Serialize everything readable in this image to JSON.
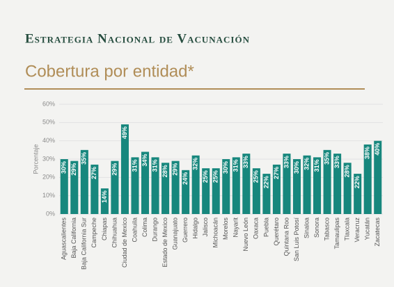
{
  "chart_data": {
    "type": "bar",
    "title": "Estrategia Nacional de Vacunación",
    "subtitle": "Cobertura por entidad*",
    "ylabel": "Porcentaje",
    "categories": [
      "Aguascalientes",
      "Baja California",
      "Baja California Sur",
      "Campeche",
      "Chiapas",
      "Chihuahua",
      "Ciudad de Mexico",
      "Coahuila",
      "Colima",
      "Durango",
      "Estado de Mexico",
      "Guanajuato",
      "Guerrero",
      "Hidalgo",
      "Jalisco",
      "Michoacán",
      "Morelos",
      "Nayarit",
      "Nuevo León",
      "Oaxaca",
      "Puebla",
      "Querétaro",
      "Quintana Roo",
      "San Luis Potosí",
      "Sinaloa",
      "Sonora",
      "Tabasco",
      "Tamaulipas",
      "Tlaxcala",
      "Veracruz",
      "Yucatán",
      "Zacatecas"
    ],
    "values": [
      30,
      29,
      35,
      27,
      14,
      29,
      49,
      31,
      34,
      31,
      28,
      29,
      24,
      32,
      25,
      25,
      30,
      31,
      33,
      25,
      22,
      27,
      33,
      30,
      32,
      31,
      35,
      33,
      28,
      22,
      38,
      40
    ],
    "value_labels": [
      "30%",
      "29%",
      "35%",
      "27%",
      "14%",
      "29%",
      "49%",
      "31%",
      "34%",
      "31%",
      "28%",
      "29%",
      "24%",
      "32%",
      "25%",
      "25%",
      "30%",
      "31%",
      "33%",
      "25%",
      "22%",
      "27%",
      "33%",
      "30%",
      "32%",
      "31%",
      "35%",
      "33%",
      "28%",
      "22%",
      "38%",
      "40%"
    ],
    "color": "#17877d",
    "ylim": [
      0,
      60
    ],
    "yticks": [
      {
        "value": 0,
        "label": "0%"
      },
      {
        "value": 10,
        "label": "10%"
      },
      {
        "value": 20,
        "label": "20%"
      },
      {
        "value": 30,
        "label": "30%"
      },
      {
        "value": 40,
        "label": "40%"
      },
      {
        "value": 50,
        "label": "50%"
      },
      {
        "value": 60,
        "label": "60%"
      }
    ]
  }
}
